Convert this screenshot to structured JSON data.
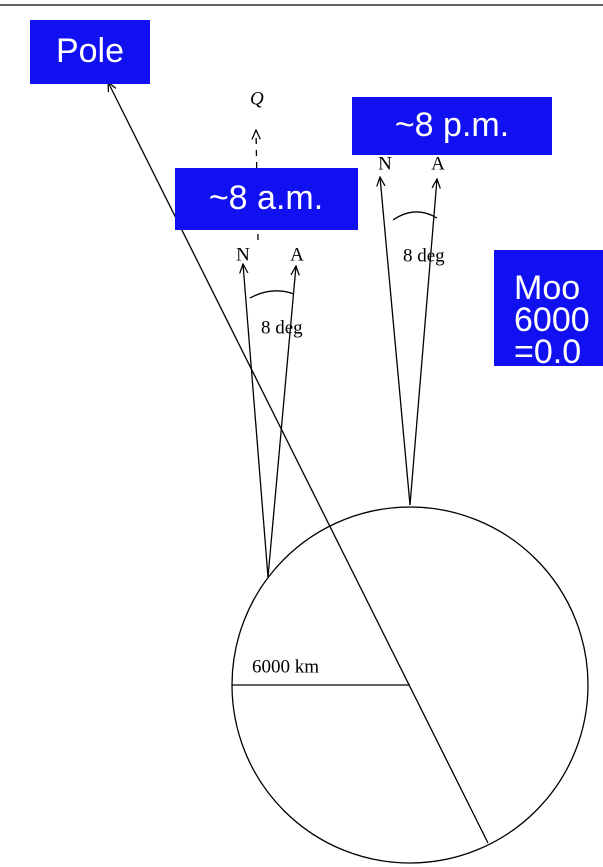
{
  "labels": {
    "pole": "Pole",
    "pm": "~8 p.m.",
    "am": "~8 a.m.",
    "moon": [
      "Moo",
      "6000",
      "=0.0"
    ],
    "radius": "6000 km",
    "q": "Q",
    "left": {
      "n": "N",
      "a": "A",
      "angle": "8 deg"
    },
    "right": {
      "n": "N",
      "a": "A",
      "angle": "8 deg"
    }
  }
}
